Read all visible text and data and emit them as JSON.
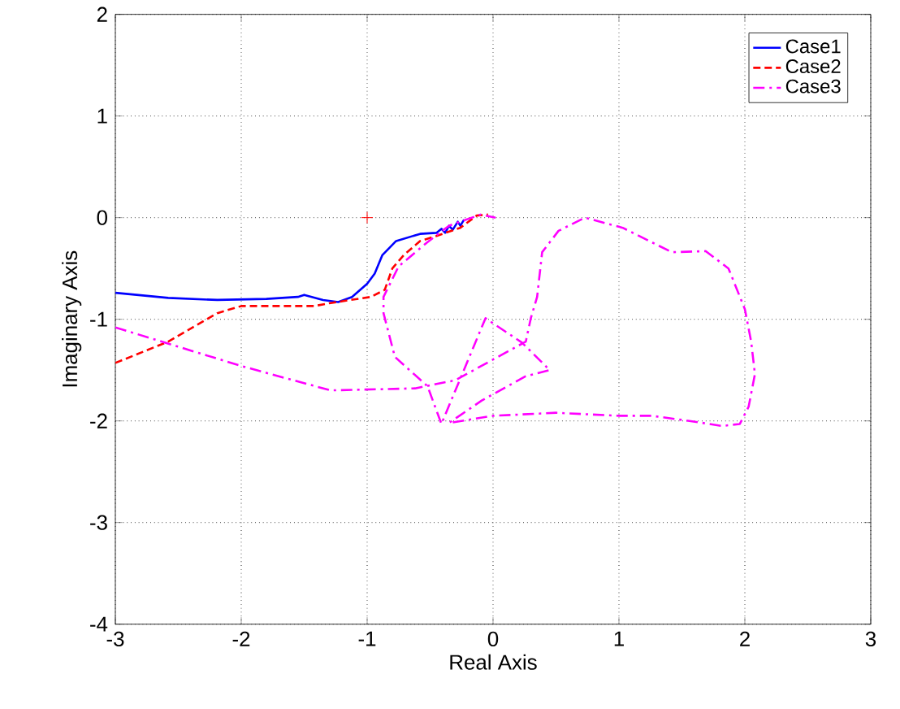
{
  "chart_data": {
    "type": "line",
    "xlabel": "Real Axis",
    "ylabel": "Imaginary Axis",
    "xlim": [
      -3,
      3
    ],
    "ylim": [
      -4,
      2
    ],
    "xticks": [
      -3,
      -2,
      -1,
      0,
      1,
      2,
      3
    ],
    "yticks": [
      -4,
      -3,
      -2,
      -1,
      0,
      1,
      2
    ],
    "grid": true,
    "legend": "top right",
    "series": [
      {
        "name": "Case1",
        "color": "#0000ff",
        "line_style": "solid",
        "x": [
          -3,
          -2.58,
          -2.19,
          -1.8,
          -1.55,
          -1.5,
          -1.35,
          -1.23,
          -1.12,
          -1.0,
          -0.94,
          -0.88,
          -0.77,
          -0.58,
          -0.45,
          -0.41,
          -0.38,
          -0.35,
          -0.32,
          -0.28,
          -0.26,
          -0.23
        ],
        "values": [
          -0.74,
          -0.79,
          -0.81,
          -0.8,
          -0.78,
          -0.76,
          -0.81,
          -0.83,
          -0.78,
          -0.65,
          -0.55,
          -0.37,
          -0.23,
          -0.16,
          -0.15,
          -0.11,
          -0.15,
          -0.08,
          -0.12,
          -0.04,
          -0.08,
          -0.02
        ]
      },
      {
        "name": "Case2",
        "color": "#ff0000",
        "line_style": "dashed",
        "x": [
          -3,
          -2.58,
          -2.19,
          -2.0,
          -1.68,
          -1.42,
          -1.29,
          -0.97,
          -0.86,
          -0.8,
          -0.71,
          -0.58,
          -0.45,
          -0.26,
          -0.13,
          -0.04
        ],
        "values": [
          -1.43,
          -1.22,
          -0.94,
          -0.87,
          -0.87,
          -0.87,
          -0.84,
          -0.78,
          -0.71,
          -0.5,
          -0.37,
          -0.23,
          -0.18,
          -0.1,
          0.02,
          0.03
        ]
      },
      {
        "name": "Case3",
        "color": "#ff00ff",
        "line_style": "dashdot",
        "x": [
          -3,
          -2.0,
          -1.29,
          -0.62,
          -0.3,
          0.26,
          0.3,
          0.35,
          0.39,
          0.52,
          0.73,
          1.03,
          1.42,
          1.69,
          1.87,
          2.0,
          2.05,
          2.08,
          2.03,
          1.96,
          1.82,
          1.56,
          1.26,
          1.0,
          0.5,
          0.0,
          -0.35,
          -0.09,
          0.26,
          0.45,
          0.23,
          -0.06,
          -0.41,
          -0.52,
          -0.78,
          -0.87,
          -0.87,
          -0.75,
          -0.52,
          -0.35,
          -0.1,
          0.02
        ],
        "values": [
          -1.08,
          -1.46,
          -1.7,
          -1.68,
          -1.6,
          -1.22,
          -0.99,
          -0.78,
          -0.34,
          -0.13,
          0.0,
          -0.1,
          -0.34,
          -0.33,
          -0.5,
          -0.9,
          -1.22,
          -1.54,
          -1.86,
          -2.03,
          -2.05,
          -2.0,
          -1.95,
          -1.95,
          -1.92,
          -1.95,
          -2.02,
          -1.8,
          -1.56,
          -1.5,
          -1.23,
          -0.99,
          -2.03,
          -1.66,
          -1.37,
          -0.94,
          -0.78,
          -0.48,
          -0.24,
          -0.08,
          0.03,
          0.0
        ]
      },
      {
        "type": "scatter",
        "color": "#ff0000",
        "marker": "cross",
        "x": [
          -1
        ],
        "values": [
          0
        ]
      }
    ]
  }
}
